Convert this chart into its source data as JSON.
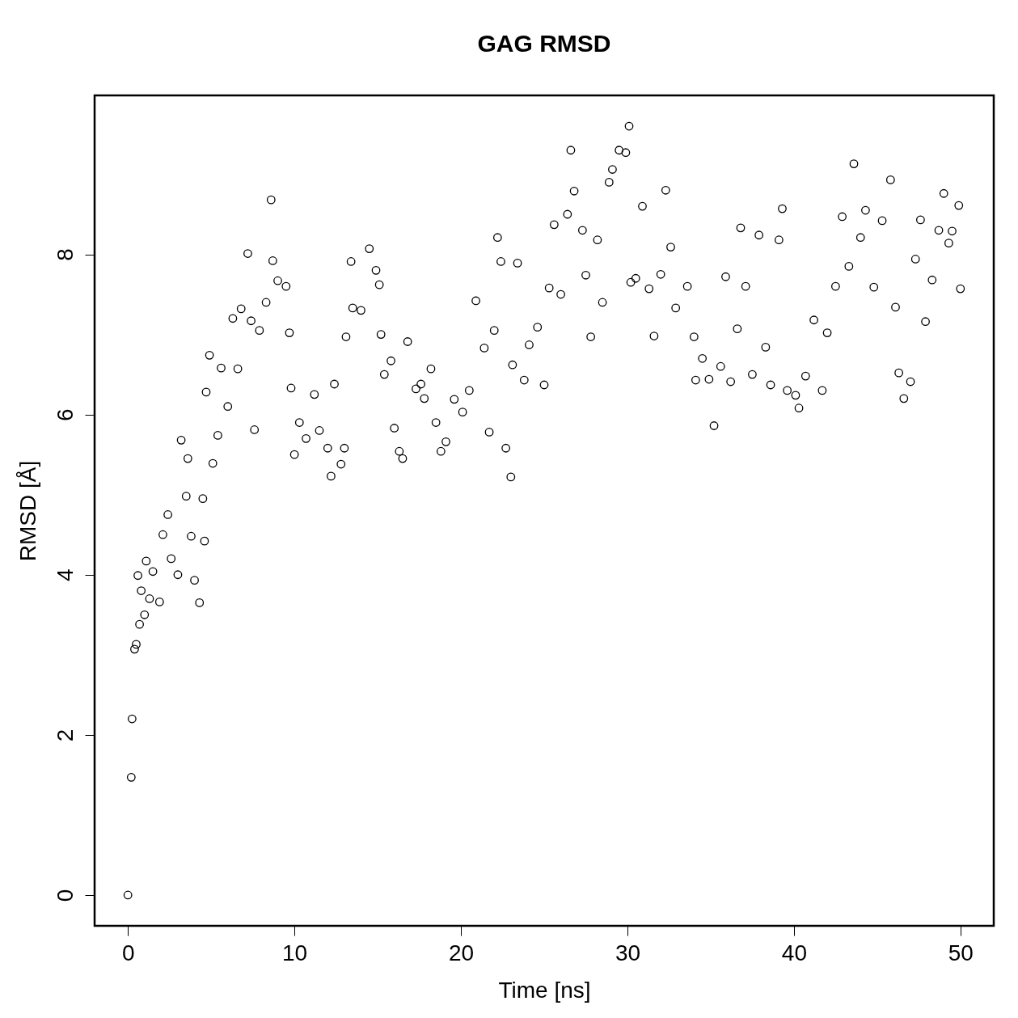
{
  "chart_data": {
    "type": "scatter",
    "title": "GAG RMSD",
    "xlabel": "Time [ns]",
    "ylabel": "RMSD [Å]",
    "xlim": [
      -2,
      52
    ],
    "ylim": [
      -0.384,
      9.984
    ],
    "xticks": [
      0,
      10,
      20,
      30,
      40,
      50
    ],
    "yticks": [
      0,
      2,
      4,
      6,
      8
    ],
    "grid": false,
    "marker": "circle",
    "series": [
      {
        "color": "#000000",
        "x": [
          0,
          0.2,
          0.25,
          0.4,
          0.5,
          0.6,
          0.7,
          0.8,
          1.0,
          1.1,
          1.3,
          1.5,
          1.9,
          2.1,
          2.4,
          2.6,
          3.0,
          3.2,
          3.5,
          3.6,
          3.8,
          4.0,
          4.3,
          4.5,
          4.6,
          4.7,
          4.9,
          5.1,
          5.4,
          5.6,
          6.0,
          6.3,
          6.6,
          6.8,
          7.2,
          7.4,
          7.6,
          7.9,
          8.3,
          8.6,
          8.7,
          9.0,
          9.5,
          9.7,
          9.8,
          10.0,
          10.3,
          10.7,
          11.2,
          11.5,
          12.0,
          12.2,
          12.4,
          12.8,
          13.0,
          13.1,
          13.4,
          13.5,
          14.0,
          14.5,
          14.9,
          15.1,
          15.2,
          15.4,
          15.8,
          16.0,
          16.3,
          16.5,
          16.8,
          17.3,
          17.6,
          17.8,
          18.2,
          18.5,
          18.8,
          19.1,
          19.6,
          20.1,
          20.5,
          20.9,
          21.4,
          21.7,
          22.0,
          22.2,
          22.4,
          22.7,
          23.0,
          23.1,
          23.4,
          23.8,
          24.1,
          24.6,
          25.0,
          25.3,
          25.6,
          26.0,
          26.4,
          26.6,
          26.8,
          27.3,
          27.5,
          27.8,
          28.2,
          28.5,
          28.9,
          29.1,
          29.5,
          29.9,
          30.1,
          30.2,
          30.5,
          30.9,
          31.3,
          31.6,
          32.0,
          32.3,
          32.6,
          32.9,
          33.6,
          34.0,
          34.1,
          34.5,
          34.9,
          35.2,
          35.6,
          35.9,
          36.2,
          36.6,
          36.8,
          37.1,
          37.5,
          37.9,
          38.3,
          38.6,
          39.1,
          39.3,
          39.6,
          40.1,
          40.3,
          40.7,
          41.2,
          41.7,
          42.0,
          42.5,
          42.9,
          43.3,
          43.6,
          44.0,
          44.3,
          44.8,
          45.3,
          45.8,
          46.1,
          46.3,
          46.6,
          47.0,
          47.3,
          47.6,
          47.9,
          48.3,
          48.7,
          49.0,
          49.3,
          49.5,
          49.9,
          50.0
        ],
        "values": [
          0,
          1.47,
          2.2,
          3.07,
          3.13,
          3.99,
          3.38,
          3.8,
          3.5,
          4.17,
          3.7,
          4.04,
          3.66,
          4.5,
          4.75,
          4.2,
          4.0,
          5.68,
          4.98,
          5.45,
          4.48,
          3.93,
          3.65,
          4.95,
          4.42,
          6.28,
          6.74,
          5.39,
          5.74,
          6.58,
          6.1,
          7.2,
          6.57,
          7.32,
          8.01,
          7.17,
          5.81,
          7.05,
          7.4,
          8.68,
          7.92,
          7.67,
          7.6,
          7.02,
          6.33,
          5.5,
          5.9,
          5.7,
          6.25,
          5.8,
          5.58,
          5.23,
          6.38,
          5.38,
          5.58,
          6.97,
          7.91,
          7.33,
          7.3,
          8.07,
          7.8,
          7.62,
          7.0,
          6.5,
          6.67,
          5.83,
          5.54,
          5.45,
          6.91,
          6.32,
          6.38,
          6.2,
          6.57,
          5.9,
          5.54,
          5.66,
          6.19,
          6.03,
          6.3,
          7.42,
          6.83,
          5.78,
          7.05,
          8.21,
          7.91,
          5.58,
          5.22,
          6.62,
          7.89,
          6.43,
          6.87,
          7.09,
          6.37,
          7.58,
          8.37,
          7.5,
          8.5,
          9.3,
          8.79,
          8.3,
          7.74,
          6.97,
          8.18,
          7.4,
          8.9,
          9.06,
          9.3,
          9.27,
          9.6,
          7.65,
          7.7,
          8.6,
          7.57,
          6.98,
          7.75,
          8.8,
          8.09,
          7.33,
          7.6,
          6.97,
          6.43,
          6.7,
          6.44,
          5.86,
          6.6,
          7.72,
          6.41,
          7.07,
          8.33,
          7.6,
          6.5,
          8.24,
          6.84,
          6.37,
          8.18,
          8.57,
          6.3,
          6.24,
          6.08,
          6.48,
          7.18,
          6.3,
          7.02,
          7.6,
          8.47,
          7.85,
          9.13,
          8.21,
          8.55,
          7.59,
          8.42,
          8.93,
          7.34,
          6.52,
          6.2,
          6.41,
          7.94,
          8.43,
          7.16,
          7.68,
          8.3,
          8.76,
          8.14,
          8.29,
          8.61,
          7.57
        ]
      }
    ]
  }
}
